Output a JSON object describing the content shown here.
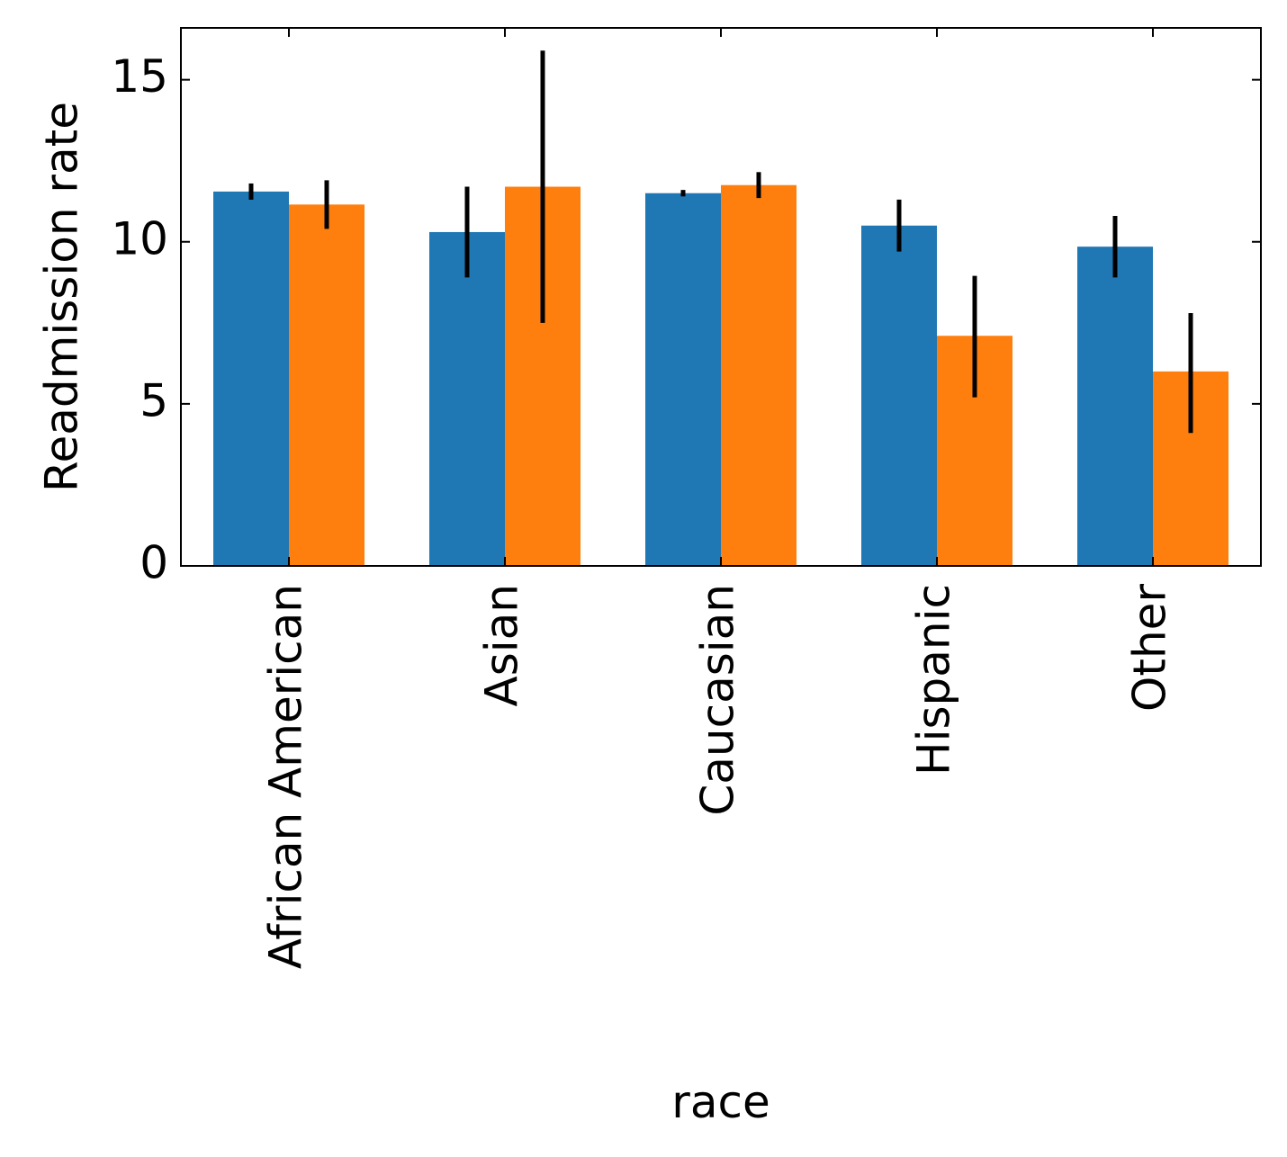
{
  "chart_data": {
    "type": "bar",
    "title": "",
    "xlabel": "race",
    "ylabel": "Readmission rate",
    "categories": [
      "African American",
      "Asian",
      "Caucasian",
      "Hispanic",
      "Other"
    ],
    "series": [
      {
        "color": "#1f77b4",
        "values": [
          11.55,
          10.3,
          11.5,
          10.5,
          9.85
        ],
        "err_low": [
          11.3,
          8.9,
          11.4,
          9.7,
          8.9
        ],
        "err_high": [
          11.8,
          11.7,
          11.6,
          11.3,
          10.8
        ]
      },
      {
        "color": "#ff7f0e",
        "values": [
          11.15,
          11.7,
          11.75,
          7.1,
          6.0
        ],
        "err_low": [
          10.4,
          7.5,
          11.35,
          5.2,
          4.1
        ],
        "err_high": [
          11.9,
          15.9,
          12.15,
          8.95,
          7.8
        ]
      }
    ],
    "ylim": [
      0,
      16.6
    ],
    "yticks": [
      0,
      5,
      10,
      15
    ],
    "ytick_labels": [
      "0",
      "5",
      "10",
      "15"
    ],
    "grid": false,
    "legend": "none"
  }
}
